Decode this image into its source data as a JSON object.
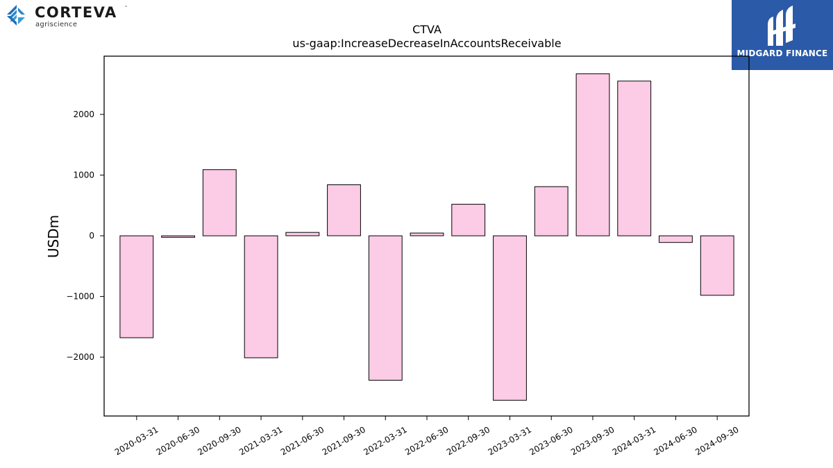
{
  "logos": {
    "left": {
      "wordmark": "CORTEVA",
      "tagline": "agriscience",
      "trademark": "™"
    },
    "right": {
      "name": "MIDGARD FINANCE",
      "background": "#2b5aa8"
    }
  },
  "chart_data": {
    "type": "bar",
    "title": "CTVA",
    "subtitle": "us-gaap:IncreaseDecreaseInAccountsReceivable",
    "xlabel": "",
    "ylabel": "USDm",
    "categories": [
      "2020-03-31",
      "2020-06-30",
      "2020-09-30",
      "2021-03-31",
      "2021-06-30",
      "2021-09-30",
      "2022-03-31",
      "2022-06-30",
      "2022-09-30",
      "2023-03-31",
      "2023-06-30",
      "2023-09-30",
      "2024-03-31",
      "2024-06-30",
      "2024-09-30"
    ],
    "values": [
      -1680,
      -25,
      1090,
      -2010,
      55,
      840,
      -2380,
      45,
      520,
      -2710,
      810,
      2670,
      2550,
      -110,
      -980
    ],
    "yticks": [
      -2000,
      -1000,
      0,
      1000,
      2000
    ],
    "ytick_labels": [
      "−2000",
      "−1000",
      "0",
      "1000",
      "2000"
    ],
    "ylim": [
      -2970,
      2960
    ],
    "grid": false,
    "legend": "none",
    "bar_fill": "#fccbe5",
    "bar_edge": "#000000"
  }
}
